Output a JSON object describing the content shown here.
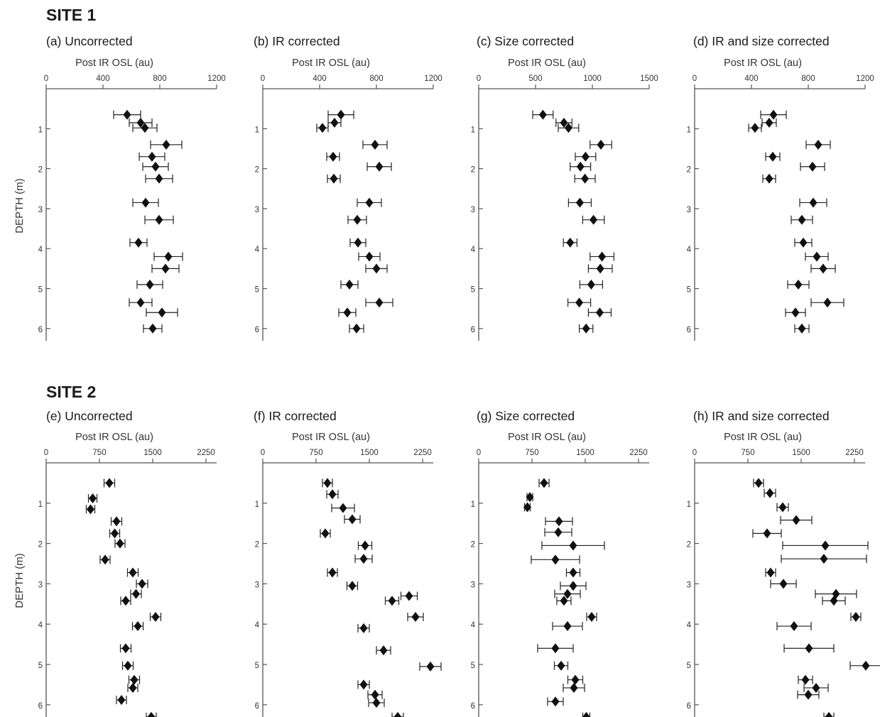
{
  "sites": [
    {
      "title": "SITE 1"
    },
    {
      "title": "SITE 2"
    }
  ],
  "y_axis": {
    "label": "DEPTH (m)",
    "ticks": [
      1,
      2,
      3,
      4,
      5,
      6
    ]
  },
  "chart_data": [
    {
      "type": "scatter",
      "site": "SITE 1",
      "panel_title": "(a) Uncorrected",
      "xlabel": "Post IR OSL (au)",
      "ylabel": "DEPTH (m)",
      "xlim": [
        0,
        1200
      ],
      "xticks": [
        0,
        400,
        800,
        1200
      ],
      "ylim": [
        0,
        6.3
      ],
      "inverted_y": true,
      "points": [
        {
          "depth": 0.65,
          "value": 570,
          "err": 95
        },
        {
          "depth": 0.85,
          "value": 665,
          "err": 80
        },
        {
          "depth": 0.98,
          "value": 695,
          "err": 85
        },
        {
          "depth": 1.4,
          "value": 845,
          "err": 110
        },
        {
          "depth": 1.7,
          "value": 745,
          "err": 90
        },
        {
          "depth": 1.95,
          "value": 770,
          "err": 90
        },
        {
          "depth": 2.25,
          "value": 795,
          "err": 95
        },
        {
          "depth": 2.85,
          "value": 700,
          "err": 90
        },
        {
          "depth": 3.28,
          "value": 795,
          "err": 100
        },
        {
          "depth": 3.85,
          "value": 650,
          "err": 60
        },
        {
          "depth": 4.2,
          "value": 860,
          "err": 100
        },
        {
          "depth": 4.5,
          "value": 840,
          "err": 95
        },
        {
          "depth": 4.9,
          "value": 730,
          "err": 90
        },
        {
          "depth": 5.35,
          "value": 665,
          "err": 80
        },
        {
          "depth": 5.6,
          "value": 815,
          "err": 110
        },
        {
          "depth": 6.0,
          "value": 750,
          "err": 65
        }
      ]
    },
    {
      "type": "scatter",
      "site": "SITE 1",
      "panel_title": "(b) IR corrected",
      "xlabel": "Post IR OSL (au)",
      "ylabel": "DEPTH (m)",
      "xlim": [
        0,
        1200
      ],
      "xticks": [
        0,
        400,
        800,
        1200
      ],
      "ylim": [
        0,
        6.3
      ],
      "inverted_y": true,
      "points": [
        {
          "depth": 0.65,
          "value": 550,
          "err": 90
        },
        {
          "depth": 0.85,
          "value": 505,
          "err": 45
        },
        {
          "depth": 0.98,
          "value": 420,
          "err": 40
        },
        {
          "depth": 1.4,
          "value": 790,
          "err": 85
        },
        {
          "depth": 1.7,
          "value": 495,
          "err": 45
        },
        {
          "depth": 1.95,
          "value": 820,
          "err": 85
        },
        {
          "depth": 2.25,
          "value": 500,
          "err": 45
        },
        {
          "depth": 2.85,
          "value": 750,
          "err": 85
        },
        {
          "depth": 3.28,
          "value": 665,
          "err": 65
        },
        {
          "depth": 3.85,
          "value": 670,
          "err": 55
        },
        {
          "depth": 4.2,
          "value": 750,
          "err": 75
        },
        {
          "depth": 4.5,
          "value": 800,
          "err": 75
        },
        {
          "depth": 4.9,
          "value": 610,
          "err": 60
        },
        {
          "depth": 5.35,
          "value": 820,
          "err": 95
        },
        {
          "depth": 5.6,
          "value": 595,
          "err": 60
        },
        {
          "depth": 6.0,
          "value": 660,
          "err": 50
        }
      ]
    },
    {
      "type": "scatter",
      "site": "SITE 1",
      "panel_title": "(c) Size corrected",
      "xlabel": "Post IR OSL (au)",
      "ylabel": "DEPTH (m)",
      "xlim": [
        0,
        1500
      ],
      "xticks": [
        0,
        500,
        1000,
        1500
      ],
      "ylim": [
        0,
        6.3
      ],
      "inverted_y": true,
      "points": [
        {
          "depth": 0.65,
          "value": 565,
          "err": 90
        },
        {
          "depth": 0.85,
          "value": 750,
          "err": 70
        },
        {
          "depth": 0.98,
          "value": 790,
          "err": 90
        },
        {
          "depth": 1.4,
          "value": 1075,
          "err": 95
        },
        {
          "depth": 1.7,
          "value": 940,
          "err": 90
        },
        {
          "depth": 1.95,
          "value": 895,
          "err": 90
        },
        {
          "depth": 2.25,
          "value": 935,
          "err": 90
        },
        {
          "depth": 2.85,
          "value": 890,
          "err": 100
        },
        {
          "depth": 3.28,
          "value": 1010,
          "err": 95
        },
        {
          "depth": 3.85,
          "value": 805,
          "err": 60
        },
        {
          "depth": 4.2,
          "value": 1085,
          "err": 105
        },
        {
          "depth": 4.5,
          "value": 1070,
          "err": 105
        },
        {
          "depth": 4.9,
          "value": 990,
          "err": 100
        },
        {
          "depth": 5.35,
          "value": 885,
          "err": 100
        },
        {
          "depth": 5.6,
          "value": 1065,
          "err": 100
        },
        {
          "depth": 6.0,
          "value": 945,
          "err": 60
        }
      ]
    },
    {
      "type": "scatter",
      "site": "SITE 1",
      "panel_title": "(d) IR and size corrected",
      "xlabel": "Post IR OSL (au)",
      "ylabel": "DEPTH (m)",
      "xlim": [
        0,
        1200
      ],
      "xticks": [
        0,
        400,
        800,
        1200
      ],
      "ylim": [
        0,
        6.3
      ],
      "inverted_y": true,
      "points": [
        {
          "depth": 0.65,
          "value": 555,
          "err": 90
        },
        {
          "depth": 0.85,
          "value": 525,
          "err": 50
        },
        {
          "depth": 0.98,
          "value": 425,
          "err": 45
        },
        {
          "depth": 1.4,
          "value": 870,
          "err": 85
        },
        {
          "depth": 1.7,
          "value": 550,
          "err": 50
        },
        {
          "depth": 1.95,
          "value": 830,
          "err": 85
        },
        {
          "depth": 2.25,
          "value": 525,
          "err": 45
        },
        {
          "depth": 2.85,
          "value": 835,
          "err": 95
        },
        {
          "depth": 3.28,
          "value": 755,
          "err": 75
        },
        {
          "depth": 3.85,
          "value": 765,
          "err": 60
        },
        {
          "depth": 4.2,
          "value": 860,
          "err": 80
        },
        {
          "depth": 4.5,
          "value": 905,
          "err": 85
        },
        {
          "depth": 4.9,
          "value": 730,
          "err": 75
        },
        {
          "depth": 5.35,
          "value": 935,
          "err": 115
        },
        {
          "depth": 5.6,
          "value": 710,
          "err": 70
        },
        {
          "depth": 6.0,
          "value": 755,
          "err": 50
        }
      ]
    },
    {
      "type": "scatter",
      "site": "SITE 2",
      "panel_title": "(e) Uncorrected",
      "xlabel": "Post IR OSL (au)",
      "ylabel": "DEPTH (m)",
      "xlim": [
        0,
        2400
      ],
      "xticks": [
        0,
        750,
        1500,
        2250
      ],
      "ylim": [
        0,
        6.35
      ],
      "inverted_y": true,
      "points": [
        {
          "depth": 0.5,
          "value": 890,
          "err": 75
        },
        {
          "depth": 0.88,
          "value": 655,
          "err": 60
        },
        {
          "depth": 1.15,
          "value": 625,
          "err": 60
        },
        {
          "depth": 1.45,
          "value": 990,
          "err": 75
        },
        {
          "depth": 1.75,
          "value": 965,
          "err": 70
        },
        {
          "depth": 2.0,
          "value": 1040,
          "err": 70
        },
        {
          "depth": 2.4,
          "value": 830,
          "err": 70
        },
        {
          "depth": 2.72,
          "value": 1220,
          "err": 75
        },
        {
          "depth": 3.0,
          "value": 1350,
          "err": 80
        },
        {
          "depth": 3.25,
          "value": 1265,
          "err": 75
        },
        {
          "depth": 3.42,
          "value": 1120,
          "err": 70
        },
        {
          "depth": 3.82,
          "value": 1540,
          "err": 75
        },
        {
          "depth": 4.05,
          "value": 1290,
          "err": 75
        },
        {
          "depth": 4.6,
          "value": 1120,
          "err": 75
        },
        {
          "depth": 5.03,
          "value": 1150,
          "err": 75
        },
        {
          "depth": 5.38,
          "value": 1240,
          "err": 75
        },
        {
          "depth": 5.58,
          "value": 1220,
          "err": 70
        },
        {
          "depth": 5.88,
          "value": 1060,
          "err": 70
        },
        {
          "depth": 6.3,
          "value": 1480,
          "err": 70
        }
      ]
    },
    {
      "type": "scatter",
      "site": "SITE 2",
      "panel_title": "(f) IR corrected",
      "xlabel": "Post IR OSL (au)",
      "ylabel": "DEPTH (m)",
      "xlim": [
        0,
        2400
      ],
      "xticks": [
        0,
        750,
        1500,
        2250
      ],
      "ylim": [
        0,
        6.35
      ],
      "inverted_y": true,
      "points": [
        {
          "depth": 0.5,
          "value": 910,
          "err": 70
        },
        {
          "depth": 0.78,
          "value": 980,
          "err": 80
        },
        {
          "depth": 1.12,
          "value": 1130,
          "err": 160
        },
        {
          "depth": 1.4,
          "value": 1260,
          "err": 110
        },
        {
          "depth": 1.75,
          "value": 880,
          "err": 70
        },
        {
          "depth": 2.05,
          "value": 1440,
          "err": 95
        },
        {
          "depth": 2.38,
          "value": 1420,
          "err": 120
        },
        {
          "depth": 2.72,
          "value": 980,
          "err": 70
        },
        {
          "depth": 3.05,
          "value": 1260,
          "err": 75
        },
        {
          "depth": 3.3,
          "value": 2060,
          "err": 115
        },
        {
          "depth": 3.42,
          "value": 1820,
          "err": 95
        },
        {
          "depth": 3.82,
          "value": 2150,
          "err": 110
        },
        {
          "depth": 4.1,
          "value": 1420,
          "err": 80
        },
        {
          "depth": 4.65,
          "value": 1700,
          "err": 100
        },
        {
          "depth": 5.05,
          "value": 2360,
          "err": 150
        },
        {
          "depth": 5.5,
          "value": 1420,
          "err": 80
        },
        {
          "depth": 5.75,
          "value": 1580,
          "err": 100
        },
        {
          "depth": 5.95,
          "value": 1600,
          "err": 110
        },
        {
          "depth": 6.3,
          "value": 1900,
          "err": 80
        }
      ]
    },
    {
      "type": "scatter",
      "site": "SITE 2",
      "panel_title": "(g) Size corrected",
      "xlabel": "Post IR OSL (au)",
      "ylabel": "DEPTH (m)",
      "xlim": [
        0,
        2400
      ],
      "xticks": [
        0,
        750,
        1500,
        2250
      ],
      "ylim": [
        0,
        6.35
      ],
      "inverted_y": true,
      "points": [
        {
          "depth": 0.5,
          "value": 920,
          "err": 70
        },
        {
          "depth": 0.85,
          "value": 720,
          "err": 40
        },
        {
          "depth": 1.1,
          "value": 685,
          "err": 40
        },
        {
          "depth": 1.45,
          "value": 1130,
          "err": 190
        },
        {
          "depth": 1.72,
          "value": 1120,
          "err": 190
        },
        {
          "depth": 2.05,
          "value": 1330,
          "err": 440
        },
        {
          "depth": 2.4,
          "value": 1080,
          "err": 340
        },
        {
          "depth": 2.72,
          "value": 1330,
          "err": 95
        },
        {
          "depth": 3.05,
          "value": 1330,
          "err": 180
        },
        {
          "depth": 3.25,
          "value": 1250,
          "err": 180
        },
        {
          "depth": 3.42,
          "value": 1200,
          "err": 100
        },
        {
          "depth": 3.82,
          "value": 1590,
          "err": 70
        },
        {
          "depth": 4.05,
          "value": 1250,
          "err": 210
        },
        {
          "depth": 4.6,
          "value": 1080,
          "err": 250
        },
        {
          "depth": 5.03,
          "value": 1160,
          "err": 95
        },
        {
          "depth": 5.38,
          "value": 1360,
          "err": 105
        },
        {
          "depth": 5.58,
          "value": 1340,
          "err": 150
        },
        {
          "depth": 5.92,
          "value": 1080,
          "err": 110
        },
        {
          "depth": 6.3,
          "value": 1515,
          "err": 50
        }
      ]
    },
    {
      "type": "scatter",
      "site": "SITE 2",
      "panel_title": "(h) IR and size corrected",
      "xlabel": "Post IR OSL (au)",
      "ylabel": "DEPTH (m)",
      "xlim": [
        0,
        2400
      ],
      "xticks": [
        0,
        750,
        1500,
        2250
      ],
      "ylim": [
        0,
        6.35
      ],
      "inverted_y": true,
      "points": [
        {
          "depth": 0.5,
          "value": 900,
          "err": 70
        },
        {
          "depth": 0.75,
          "value": 1060,
          "err": 80
        },
        {
          "depth": 1.1,
          "value": 1240,
          "err": 80
        },
        {
          "depth": 1.42,
          "value": 1430,
          "err": 220
        },
        {
          "depth": 1.75,
          "value": 1020,
          "err": 200
        },
        {
          "depth": 2.05,
          "value": 1840,
          "err": 600
        },
        {
          "depth": 2.38,
          "value": 1820,
          "err": 600
        },
        {
          "depth": 2.72,
          "value": 1070,
          "err": 70
        },
        {
          "depth": 3.0,
          "value": 1250,
          "err": 180
        },
        {
          "depth": 3.25,
          "value": 1990,
          "err": 290
        },
        {
          "depth": 3.42,
          "value": 1960,
          "err": 160
        },
        {
          "depth": 3.82,
          "value": 2270,
          "err": 70
        },
        {
          "depth": 4.05,
          "value": 1400,
          "err": 240
        },
        {
          "depth": 4.6,
          "value": 1610,
          "err": 350
        },
        {
          "depth": 5.03,
          "value": 2410,
          "err": 220
        },
        {
          "depth": 5.38,
          "value": 1560,
          "err": 100
        },
        {
          "depth": 5.58,
          "value": 1710,
          "err": 170
        },
        {
          "depth": 5.75,
          "value": 1600,
          "err": 150
        },
        {
          "depth": 6.3,
          "value": 1890,
          "err": 70
        }
      ]
    }
  ]
}
